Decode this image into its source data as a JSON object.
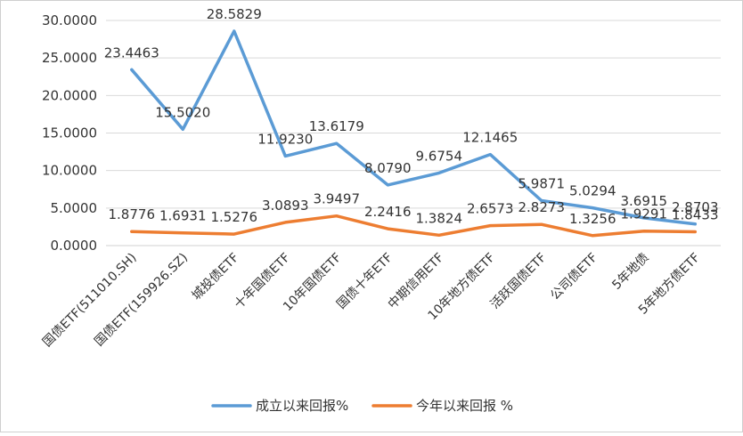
{
  "chart_data": {
    "type": "line",
    "categories": [
      "国债ETF(511010.SH)",
      "国债ETF(159926.SZ)",
      "城投债ETF",
      "十年国债ETF",
      "10年国债ETF",
      "国债十年ETF",
      "中期信用ETF",
      "10年地方债ETF",
      "活跃国债ETF",
      "公司债ETF",
      "5年地债",
      "5年地方债ETF"
    ],
    "series": [
      {
        "name": "成立以来回报%",
        "color": "#5b9bd5",
        "values": [
          23.4463,
          15.502,
          28.5829,
          11.923,
          13.6179,
          8.079,
          9.6754,
          12.1465,
          5.9871,
          5.0294,
          3.6915,
          2.8703
        ],
        "labels": [
          "23.4463",
          "15.5020",
          "28.5829",
          "11.9230",
          "13.6179",
          "8.0790",
          "9.6754",
          "12.1465",
          "5.9871",
          "5.0294",
          "3.6915",
          "2.8703"
        ]
      },
      {
        "name": "今年以来回报 %",
        "color": "#ed7d31",
        "values": [
          1.8776,
          1.6931,
          1.5276,
          3.0893,
          3.9497,
          2.2416,
          1.3824,
          2.6573,
          2.8273,
          1.3256,
          1.9291,
          1.8433
        ],
        "labels": [
          "1.8776",
          "1.6931",
          "1.5276",
          "3.0893",
          "3.9497",
          "2.2416",
          "1.3824",
          "2.6573",
          "2.8273",
          "1.3256",
          "1.9291",
          "1.8433"
        ]
      }
    ],
    "yticks": [
      "0.0000",
      "5.0000",
      "10.0000",
      "15.0000",
      "20.0000",
      "25.0000",
      "30.0000"
    ],
    "ylim": [
      0,
      30
    ],
    "grid": true,
    "legend": "bottom",
    "title": "",
    "xlabel": "",
    "ylabel": ""
  }
}
